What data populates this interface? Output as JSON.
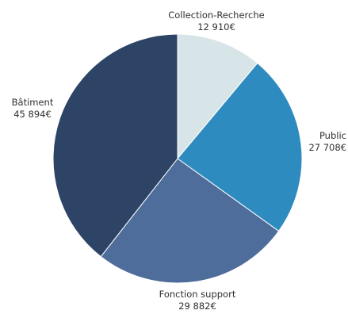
{
  "chart_data": {
    "type": "pie",
    "title": "",
    "start_angle_deg": 0,
    "direction": "clockwise",
    "slices": [
      {
        "name": "Collection-Recherche",
        "value": 12910,
        "value_label": "12 910€",
        "color": "#d7e5e8"
      },
      {
        "name": "Public",
        "value": 27708,
        "value_label": "27 708€",
        "color": "#2e8bbf"
      },
      {
        "name": "Fonction support",
        "value": 29882,
        "value_label": "29 882€",
        "color": "#4f6d9a"
      },
      {
        "name": "Bâtiment",
        "value": 45894,
        "value_label": "45 894€",
        "color": "#2d4466"
      }
    ],
    "legend": "none",
    "labels_position": "outside"
  }
}
